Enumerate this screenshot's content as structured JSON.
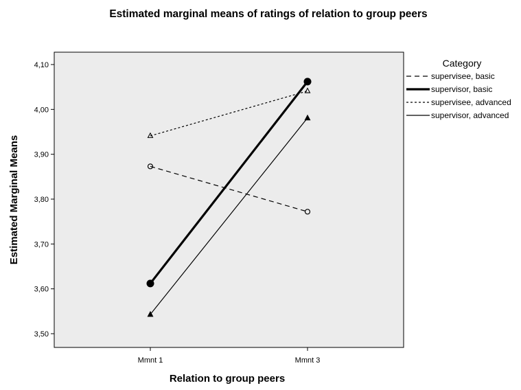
{
  "chart_data": {
    "type": "line",
    "title": "Estimated marginal means of ratings of relation to group peers",
    "xlabel": "Relation to group peers",
    "ylabel": "Estimated Marginal Means",
    "categories": [
      "Mmnt 1",
      "Mmnt 3"
    ],
    "ylim": [
      3.47,
      4.13
    ],
    "yticks": [
      "3,50",
      "3,60",
      "3,70",
      "3,80",
      "3,90",
      "4,00",
      "4,10"
    ],
    "ytick_values": [
      3.5,
      3.6,
      3.7,
      3.8,
      3.9,
      4.0,
      4.1
    ],
    "grid": false,
    "plot_background": "#ececec",
    "legend": {
      "title": "Category",
      "position": "right"
    },
    "series": [
      {
        "name": "supervisee, basic",
        "values": [
          3.873,
          3.772
        ],
        "line_style": "dashed",
        "marker": "open-circle"
      },
      {
        "name": "supervisor, basic",
        "values": [
          3.612,
          4.062
        ],
        "line_style": "solid-thick",
        "marker": "filled-circle"
      },
      {
        "name": "supervisee, advanced",
        "values": [
          3.941,
          4.041
        ],
        "line_style": "dotted",
        "marker": "open-triangle"
      },
      {
        "name": "supervisor, advanced",
        "values": [
          3.543,
          3.981
        ],
        "line_style": "solid",
        "marker": "filled-triangle"
      }
    ]
  }
}
